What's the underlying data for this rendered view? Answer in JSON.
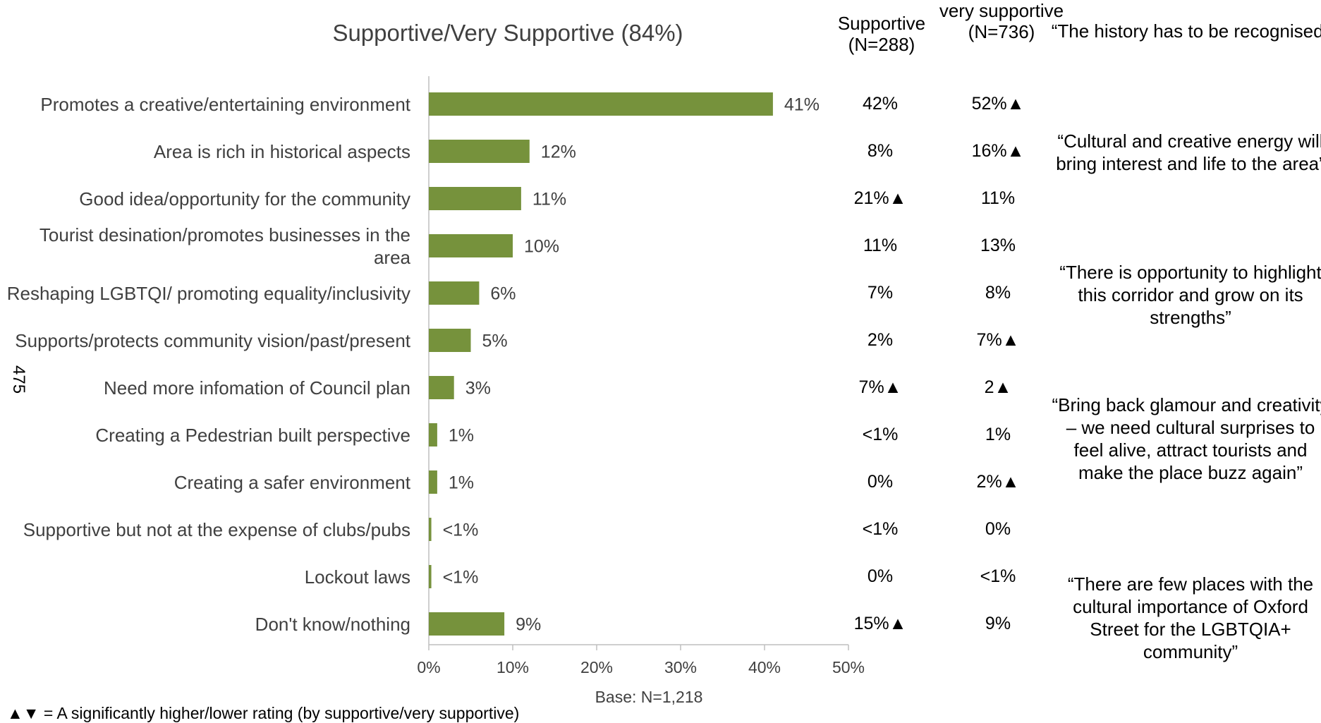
{
  "chart_data": {
    "type": "bar",
    "orientation": "horizontal",
    "title": "Supportive/Very Supportive (84%)",
    "categories": [
      "Promotes a creative/entertaining environment",
      "Area is rich in historical aspects",
      "Good idea/opportunity for the community",
      "Tourist desination/promotes businesses in the area",
      "Reshaping LGBTQI/ promoting equality/inclusivity",
      "Supports/protects community vision/past/present",
      "Need more infomation of Council plan",
      "Creating a Pedestrian built perspective",
      "Creating a safer environment",
      "Supportive but not at the expense of clubs/pubs",
      "Lockout laws",
      "Don't know/nothing"
    ],
    "values": [
      41,
      12,
      11,
      10,
      6,
      5,
      3,
      1,
      1,
      0.3,
      0.3,
      9
    ],
    "value_labels": [
      "41%",
      "12%",
      "11%",
      "10%",
      "6%",
      "5%",
      "3%",
      "1%",
      "1%",
      "<1%",
      "<1%",
      "9%"
    ],
    "xlim": [
      0,
      50
    ],
    "xticks": [
      "0%",
      "10%",
      "20%",
      "30%",
      "40%",
      "50%"
    ],
    "bar_color": "#76923c",
    "grid": false,
    "base_label": "Base: N=1,218"
  },
  "columns": [
    {
      "header": "Supportive (N=288)",
      "values": [
        "42%",
        "8%",
        "21%▲",
        "11%",
        "7%",
        "2%",
        "7%▲",
        "<1%",
        "0%",
        "<1%",
        "0%",
        "15%▲"
      ]
    },
    {
      "header": "very supportive (N=736)",
      "values": [
        "52%▲",
        "16%▲",
        "11%",
        "13%",
        "8%",
        "7%▲",
        "2▲",
        "1%",
        "2%▲",
        "0%",
        "<1%",
        "9%"
      ]
    }
  ],
  "quotes": [
    "“The history has to be recognised”",
    "“Cultural and creative energy will bring interest and life to the area”",
    "“There is opportunity to highlight this corridor and grow on its strengths”",
    "“Bring back glamour and creativity – we need cultural surprises to feel alive, attract tourists and make the place buzz again”",
    "“There are few places with the cultural importance of Oxford Street for the LGBTQIA+ community”"
  ],
  "side_label": "475",
  "footnote": "▲▼ = A significantly higher/lower rating (by supportive/very supportive)"
}
